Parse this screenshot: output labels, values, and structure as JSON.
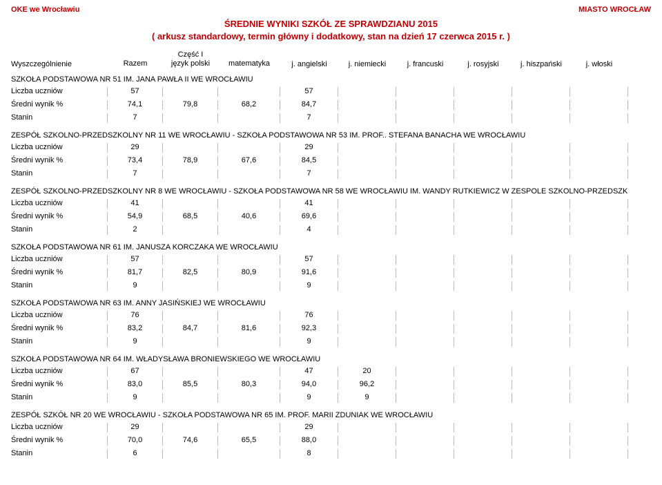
{
  "header": {
    "left": "OKE we Wrocławiu",
    "right": "MIASTO WROCŁAW",
    "title1": "ŚREDNIE WYNIKI SZKÓŁ ZE SPRAWDZIANU 2015",
    "title2": "( arkusz standardowy, termin główny i dodatkowy, stan na dzień 17 czerwca 2015 r. )"
  },
  "columns": {
    "wysz": "Wyszczególnienie",
    "czesc": "Część I",
    "razem": "Razem",
    "polski": "język polski",
    "mat": "matematyka",
    "ang": "j. angielski",
    "niem": "j. niemiecki",
    "fra": "j. francuski",
    "ros": "j. rosyjski",
    "hisz": "j. hiszpański",
    "wlo": "j. włoski"
  },
  "metrics": {
    "liczba": "Liczba uczniów",
    "sredni": "Średni wynik %",
    "stanin": "Stanin"
  },
  "schools": [
    {
      "name": "SZKOŁA PODSTAWOWA NR 51 IM. JANA PAWŁA II WE WROCŁAWIU",
      "liczba": {
        "razem": "57",
        "ang": "57"
      },
      "sredni": {
        "razem": "74,1",
        "polski": "79,8",
        "mat": "68,2",
        "ang": "84,7"
      },
      "stanin": {
        "razem": "7",
        "ang": "7"
      }
    },
    {
      "name": "ZESPÓŁ SZKOLNO-PRZEDSZKOLNY NR 11 WE WROCŁAWIU - SZKOŁA PODSTAWOWA NR 53 IM. PROF.. STEFANA BANACHA WE WROCŁAWIU",
      "liczba": {
        "razem": "29",
        "ang": "29"
      },
      "sredni": {
        "razem": "73,4",
        "polski": "78,9",
        "mat": "67,6",
        "ang": "84,5"
      },
      "stanin": {
        "razem": "7",
        "ang": "7"
      }
    },
    {
      "name": "ZESPÓŁ SZKOLNO-PRZEDSZKOLNY NR 8 WE WROCŁAWIU - SZKOŁA PODSTAWOWA NR 58 WE WROCŁAWIU IM. WANDY RUTKIEWICZ W ZESPOLE SZKOLNO-PRZEDSZK",
      "liczba": {
        "razem": "41",
        "ang": "41"
      },
      "sredni": {
        "razem": "54,9",
        "polski": "68,5",
        "mat": "40,6",
        "ang": "69,6"
      },
      "stanin": {
        "razem": "2",
        "ang": "4"
      }
    },
    {
      "name": "SZKOŁA PODSTAWOWA NR 61 IM. JANUSZA KORCZAKA WE WROCŁAWIU",
      "liczba": {
        "razem": "57",
        "ang": "57"
      },
      "sredni": {
        "razem": "81,7",
        "polski": "82,5",
        "mat": "80,9",
        "ang": "91,6"
      },
      "stanin": {
        "razem": "9",
        "ang": "9"
      }
    },
    {
      "name": "SZKOŁA PODSTAWOWA NR 63 IM. ANNY JASIŃSKIEJ WE WROCŁAWIU",
      "liczba": {
        "razem": "76",
        "ang": "76"
      },
      "sredni": {
        "razem": "83,2",
        "polski": "84,7",
        "mat": "81,6",
        "ang": "92,3"
      },
      "stanin": {
        "razem": "9",
        "ang": "9"
      }
    },
    {
      "name": "SZKOŁA PODSTAWOWA NR 64 IM. WŁADYSŁAWA BRONIEWSKIEGO WE WROCŁAWIU",
      "liczba": {
        "razem": "67",
        "ang": "47",
        "niem": "20"
      },
      "sredni": {
        "razem": "83,0",
        "polski": "85,5",
        "mat": "80,3",
        "ang": "94,0",
        "niem": "96,2"
      },
      "stanin": {
        "razem": "9",
        "ang": "9",
        "niem": "9"
      }
    },
    {
      "name": "ZESPÓŁ SZKÓŁ NR 20 WE WROCŁAWIU - SZKOŁA PODSTAWOWA NR 65 IM. PROF. MARII ZDUNIAK WE WROCŁAWIU",
      "liczba": {
        "razem": "29",
        "ang": "29"
      },
      "sredni": {
        "razem": "70,0",
        "polski": "74,6",
        "mat": "65,5",
        "ang": "88,0"
      },
      "stanin": {
        "razem": "6",
        "ang": "8"
      }
    }
  ]
}
